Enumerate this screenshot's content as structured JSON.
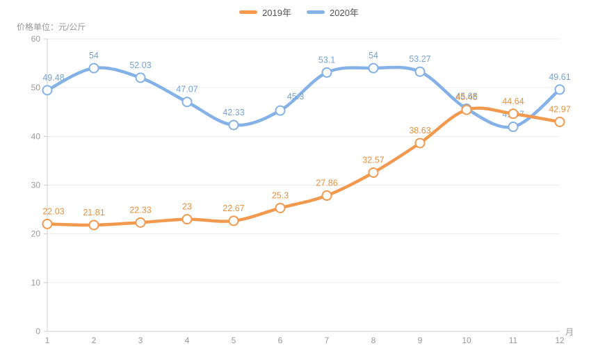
{
  "header": {
    "unit_label": "价格单位：元/公斤"
  },
  "legend": {
    "items": [
      {
        "label": "2019年",
        "color": "#F2994E"
      },
      {
        "label": "2020年",
        "color": "#83B1E8"
      }
    ]
  },
  "chart_data": {
    "type": "line",
    "title": "",
    "xlabel": "月",
    "ylabel": "价格单位：元/公斤",
    "x": [
      1,
      2,
      3,
      4,
      5,
      6,
      7,
      8,
      9,
      10,
      11,
      12
    ],
    "ylim": [
      0,
      60
    ],
    "y_ticks": [
      0,
      10,
      20,
      30,
      40,
      50,
      60
    ],
    "grid": true,
    "smooth": true,
    "legend_position": "top",
    "marker": "circle-white-fill",
    "series": [
      {
        "name": "2020年",
        "color": "#83B1E8",
        "label_color": "#74A3D8",
        "values": [
          49.48,
          54,
          52.03,
          47.07,
          42.33,
          45.3,
          53.1,
          54,
          53.27,
          45.68,
          41.97,
          49.61
        ],
        "labels": [
          "49.48",
          "54",
          "52.03",
          "47.07",
          "42.33",
          "45.3",
          "53.1",
          "54",
          "53.27",
          "45.68",
          "41.97",
          "49.61"
        ],
        "label_offsets": {
          "0": [
            9,
            0
          ],
          "5": [
            22,
            -2
          ]
        }
      },
      {
        "name": "2019年",
        "color": "#F2994E",
        "label_color": "#E8913F",
        "values": [
          22.03,
          21.81,
          22.33,
          23,
          22.67,
          25.3,
          27.86,
          32.57,
          38.63,
          45.45,
          44.64,
          42.97
        ],
        "labels": [
          "22.03",
          "21.81",
          "22.33",
          "23",
          "22.67",
          "25.3",
          "27.86",
          "32.57",
          "38.63",
          "45.45",
          "44.64",
          "42.97"
        ],
        "label_offsets": {
          "0": [
            9,
            0
          ]
        }
      }
    ]
  }
}
